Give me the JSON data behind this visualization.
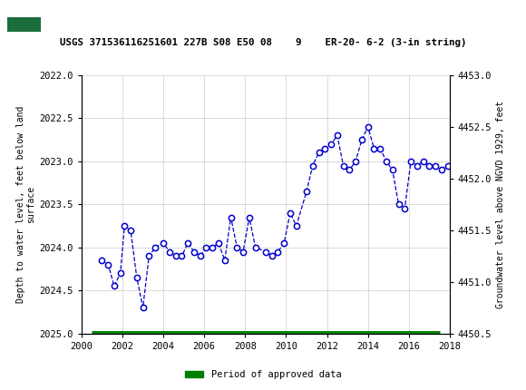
{
  "title": "USGS 371536116251601 227B S08 E50 08    9    ER-20- 6-2 (3-in string)",
  "ylabel_left": "Depth to water level, feet below land\nsurface",
  "ylabel_right": "Groundwater level above NGVD 1929, feet",
  "xlim": [
    2000,
    2018
  ],
  "ylim_left": [
    2025.0,
    2022.0
  ],
  "ylim_right": [
    4450.5,
    4453.0
  ],
  "yticks_left": [
    2022.0,
    2022.5,
    2023.0,
    2023.5,
    2024.0,
    2024.5,
    2025.0
  ],
  "yticks_right": [
    4450.5,
    4451.0,
    4451.5,
    4452.0,
    4452.5,
    4453.0
  ],
  "xticks": [
    2000,
    2002,
    2004,
    2006,
    2008,
    2010,
    2012,
    2014,
    2016,
    2018
  ],
  "header_color": "#1a6e3c",
  "line_color": "#0000cc",
  "marker_color": "#0000cc",
  "grid_color": "#cccccc",
  "approved_bar_color": "#008000",
  "legend_label": "Period of approved data",
  "data_x": [
    2001.0,
    2001.3,
    2001.6,
    2001.9,
    2002.1,
    2002.4,
    2002.7,
    2003.0,
    2003.3,
    2003.6,
    2004.0,
    2004.3,
    2004.6,
    2004.9,
    2005.2,
    2005.5,
    2005.8,
    2006.1,
    2006.4,
    2006.7,
    2007.0,
    2007.3,
    2007.6,
    2007.9,
    2008.2,
    2008.5,
    2009.0,
    2009.3,
    2009.6,
    2009.9,
    2010.2,
    2010.5,
    2011.0,
    2011.3,
    2011.6,
    2011.9,
    2012.2,
    2012.5,
    2012.8,
    2013.1,
    2013.4,
    2013.7,
    2014.0,
    2014.3,
    2014.6,
    2014.9,
    2015.2,
    2015.5,
    2015.8,
    2016.1,
    2016.4,
    2016.7,
    2017.0,
    2017.3,
    2017.6,
    2017.9
  ],
  "data_y": [
    2024.15,
    2024.2,
    2024.45,
    2024.3,
    2023.75,
    2023.8,
    2024.35,
    2024.7,
    2024.1,
    2024.0,
    2023.95,
    2024.05,
    2024.1,
    2024.1,
    2023.95,
    2024.05,
    2024.1,
    2024.0,
    2024.0,
    2023.95,
    2024.15,
    2023.65,
    2024.0,
    2024.05,
    2023.65,
    2024.0,
    2024.05,
    2024.1,
    2024.05,
    2023.95,
    2023.6,
    2023.75,
    2023.35,
    2023.05,
    2022.9,
    2022.85,
    2022.8,
    2022.7,
    2023.05,
    2023.1,
    2023.0,
    2022.75,
    2022.6,
    2022.85,
    2022.85,
    2023.0,
    2023.1,
    2023.5,
    2023.55,
    2023.0,
    2023.05,
    2023.0,
    2023.05,
    2023.05,
    2023.1,
    2023.05
  ],
  "approved_bar_y": 2025.0,
  "approved_bar_x_start": 2000.5,
  "approved_bar_x_end": 2017.5
}
